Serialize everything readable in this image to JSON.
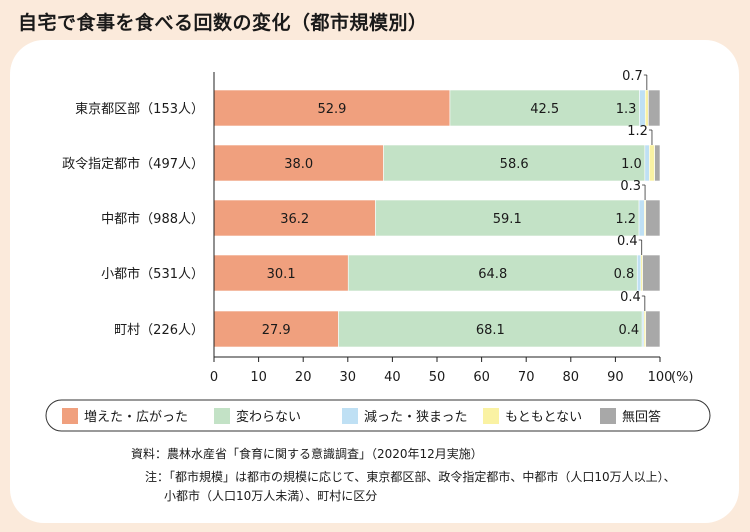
{
  "title": "自宅で食事を食べる回数の変化（都市規模別）",
  "chart_data": {
    "type": "bar",
    "orientation": "horizontal",
    "stacked": true,
    "categories": [
      "東京都区部（153人）",
      "政令指定都市（497人）",
      "中都市（988人）",
      "小都市（531人）",
      "町村（226人）"
    ],
    "series": [
      {
        "name": "増えた・広がった",
        "color": "#f0a07e",
        "values": [
          52.9,
          38.0,
          36.2,
          30.1,
          27.9
        ]
      },
      {
        "name": "変わらない",
        "color": "#c3e2c6",
        "values": [
          42.5,
          58.6,
          59.1,
          64.8,
          68.1
        ]
      },
      {
        "name": "減った・狭まった",
        "color": "#bfe0f4",
        "values": [
          1.3,
          1.0,
          1.2,
          0.8,
          0.4
        ]
      },
      {
        "name": "もともとない",
        "color": "#faf2a3",
        "values": [
          0.7,
          1.2,
          0.3,
          0.4,
          0.4
        ]
      },
      {
        "name": "無回答",
        "color": "#a8a8a8",
        "values": [
          2.6,
          1.2,
          3.2,
          3.9,
          3.2
        ]
      }
    ],
    "data_labels": [
      [
        "52.9",
        "42.5",
        "1.3",
        "0.7"
      ],
      [
        "38.0",
        "58.6",
        "1.0",
        "1.2"
      ],
      [
        "36.2",
        "59.1",
        "1.2",
        "0.3"
      ],
      [
        "30.1",
        "64.8",
        "0.8",
        "0.4"
      ],
      [
        "27.9",
        "68.1",
        "0.4",
        "0.4"
      ]
    ],
    "xlim": [
      0,
      100
    ],
    "xticks": [
      "0",
      "10",
      "20",
      "30",
      "40",
      "50",
      "60",
      "70",
      "80",
      "90",
      "100"
    ],
    "xunit": "(%)",
    "legend_position": "bottom"
  },
  "source": "資料：農林水産省「食育に関する意識調査」（2020年12月実施）",
  "note_line1": "注：「都市規模」は都市の規模に応じて、東京都区部、政令指定都市、中都市（人口10万人以上）、",
  "note_line2": "小都市（人口10万人未満）、町村に区分"
}
